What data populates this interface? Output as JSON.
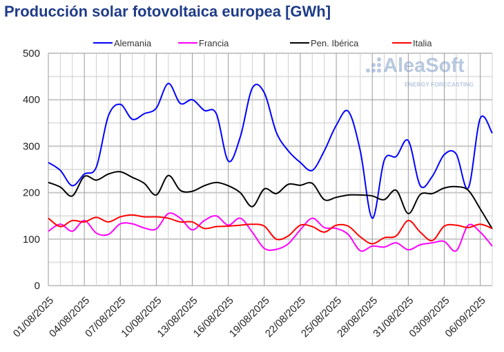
{
  "chart_data": {
    "type": "line",
    "title": "Producción solar fotovoltaica europea [GWh]",
    "xlabel": "",
    "ylabel": "",
    "ylim": [
      0,
      500
    ],
    "yticks": [
      0,
      100,
      200,
      300,
      400,
      500
    ],
    "grid": true,
    "legend_position": "top",
    "start_date": "01/08/2025",
    "xtick_labels": [
      "01/08/2025",
      "04/08/2025",
      "07/08/2025",
      "10/08/2025",
      "13/08/2025",
      "16/08/2025",
      "19/08/2025",
      "22/08/2025",
      "25/08/2025",
      "28/08/2025",
      "31/08/2025",
      "03/09/2025",
      "06/09/2025"
    ],
    "series": [
      {
        "name": "Alemania",
        "color": "#0000ff",
        "values": [
          265,
          248,
          215,
          240,
          255,
          365,
          390,
          358,
          370,
          382,
          435,
          392,
          400,
          377,
          370,
          268,
          320,
          425,
          415,
          330,
          290,
          265,
          248,
          290,
          345,
          375,
          290,
          145,
          270,
          278,
          312,
          215,
          235,
          282,
          283,
          210,
          360,
          328
        ]
      },
      {
        "name": "Francia",
        "color": "#ff00ff",
        "values": [
          117,
          132,
          117,
          140,
          113,
          110,
          133,
          133,
          124,
          122,
          155,
          145,
          120,
          140,
          150,
          130,
          145,
          115,
          80,
          78,
          90,
          120,
          145,
          125,
          123,
          110,
          75,
          85,
          83,
          92,
          77,
          88,
          92,
          95,
          75,
          130,
          115,
          85
        ]
      },
      {
        "name": "Pen. Ibérica",
        "color": "#000000",
        "values": [
          222,
          212,
          193,
          235,
          227,
          240,
          245,
          233,
          220,
          195,
          237,
          205,
          203,
          215,
          222,
          215,
          200,
          170,
          208,
          198,
          218,
          216,
          220,
          185,
          190,
          195,
          195,
          193,
          185,
          205,
          155,
          196,
          198,
          210,
          213,
          205,
          165,
          122
        ]
      },
      {
        "name": "Italia",
        "color": "#ff0000",
        "values": [
          145,
          127,
          140,
          137,
          147,
          137,
          148,
          152,
          148,
          148,
          145,
          137,
          137,
          123,
          127,
          128,
          130,
          132,
          128,
          100,
          107,
          130,
          127,
          115,
          130,
          128,
          105,
          90,
          103,
          107,
          140,
          115,
          97,
          128,
          130,
          125,
          132,
          123
        ]
      }
    ]
  },
  "watermark": {
    "brand": "AleaSoft",
    "tagline": "ENERGY FORECASTING"
  }
}
